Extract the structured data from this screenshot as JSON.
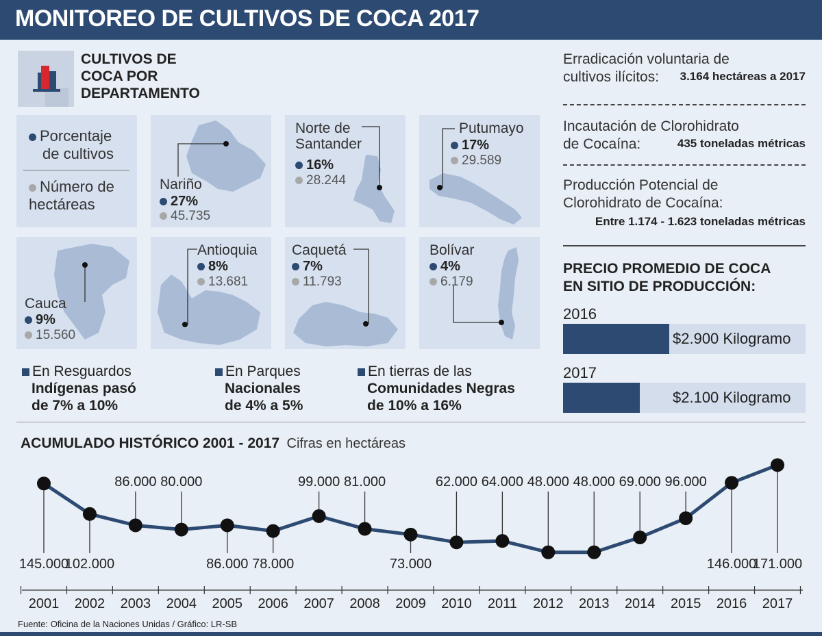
{
  "header": {
    "title": "MONITOREO DE CULTIVOS DE COCA 2017"
  },
  "departments_section": {
    "title_lines": [
      "CULTIVOS DE",
      "COCA POR",
      "DEPARTAMENTO"
    ]
  },
  "legend": {
    "percent_line1": "Porcentaje",
    "percent_line2": "de cultivos",
    "hectares_line1": "Número de",
    "hectares_line2": "hectáreas"
  },
  "departments": [
    {
      "name": "Nariño",
      "percent": "27%",
      "hectares": "45.735"
    },
    {
      "name_line1": "Norte de",
      "name_line2": "Santander",
      "percent": "16%",
      "hectares": "28.244"
    },
    {
      "name": "Putumayo",
      "percent": "17%",
      "hectares": "29.589"
    },
    {
      "name": "Cauca",
      "percent": "9%",
      "hectares": "15.560"
    },
    {
      "name": "Antioquia",
      "percent": "8%",
      "hectares": "13.681"
    },
    {
      "name": "Caquetá",
      "percent": "7%",
      "hectares": "11.793"
    },
    {
      "name": "Bolívar",
      "percent": "4%",
      "hectares": "6.179"
    }
  ],
  "notes": [
    {
      "line1": "En Resguardos",
      "line2": "Indígenas pasó",
      "line3": "de 7% a 10%"
    },
    {
      "line1": "En Parques",
      "line2": "Nacionales",
      "line3": "de 4% a 5%"
    },
    {
      "line1": "En tierras de las",
      "line2": "Comunidades Negras",
      "line3": "de 10% a 16%"
    }
  ],
  "stats": [
    {
      "label_line1": "Erradicación voluntaria de",
      "label_line2": "cultivos ilícitos:",
      "value": "3.164 hectáreas a 2017"
    },
    {
      "label_line1": "Incautación de Clorohidrato",
      "label_line2": "de Cocaína:",
      "value": "435 toneladas métricas"
    },
    {
      "label_line1": "Producción Potencial de",
      "label_line2": "Clorohidrato de Cocaína:",
      "value": "Entre 1.174 - 1.623 toneladas métricas"
    }
  ],
  "price": {
    "title_line1": "PRECIO PROMEDIO DE COCA",
    "title_line2": "EN SITIO DE PRODUCCIÓN:",
    "rows": [
      {
        "year": "2016",
        "label": "$2.900 Kilogramo",
        "value": 2900
      },
      {
        "year": "2017",
        "label": "$2.100 Kilogramo",
        "value": 2100
      }
    ]
  },
  "chart_data": {
    "type": "line",
    "title": "ACUMULADO HISTÓRICO 2001 - 2017",
    "subtitle": "Cifras en hectáreas",
    "xlabel": "",
    "ylabel": "",
    "grid": false,
    "x": [
      "2001",
      "2002",
      "2003",
      "2004",
      "2005",
      "2006",
      "2007",
      "2008",
      "2009",
      "2010",
      "2011",
      "2012",
      "2013",
      "2014",
      "2015",
      "2016",
      "2017"
    ],
    "values": [
      145000,
      102000,
      86000,
      80000,
      86000,
      78000,
      99000,
      81000,
      73000,
      62000,
      64000,
      48000,
      48000,
      69000,
      96000,
      146000,
      171000
    ],
    "labels": [
      "145.000",
      "102.000",
      "86.000",
      "80.000",
      "86.000",
      "78.000",
      "99.000",
      "81.000",
      "73.000",
      "62.000",
      "64.000",
      "48.000",
      "48.000",
      "69.000",
      "96.000",
      "146.000",
      "171.000"
    ],
    "label_positions": [
      "below",
      "below",
      "above",
      "above",
      "below",
      "below",
      "above",
      "above",
      "below",
      "above",
      "above",
      "above",
      "above",
      "above",
      "above",
      "below",
      "below"
    ],
    "ylim": [
      40000,
      180000
    ],
    "color": "#2d4a72"
  },
  "footer": {
    "source": "Fuente:  Oficina de la Naciones Unidas  / Gráfico: LR-SB"
  }
}
